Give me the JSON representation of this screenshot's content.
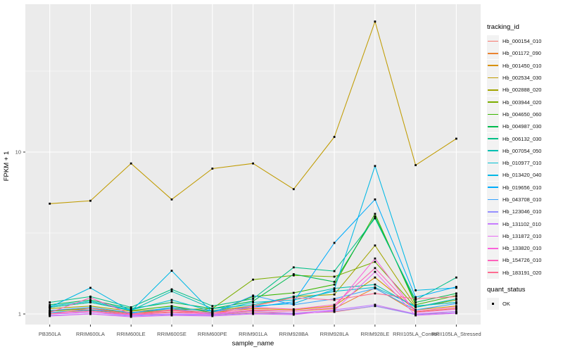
{
  "chart_data": {
    "type": "line",
    "title": "",
    "xlabel": "sample_name",
    "ylabel": "FPKM + 1",
    "x_categories": [
      "PB350LA",
      "RRIM600LA",
      "RRIM600LE",
      "RRIM600SE",
      "RRIM600PE",
      "RRIM901LA",
      "RRIM928BA",
      "RRIM928LA",
      "RRIM928LE",
      "RRII105LA_Control",
      "RRII105LA_Stressed"
    ],
    "y_axis": {
      "scale": "log10",
      "major_ticks": [
        1,
        10
      ],
      "major_tick_labels": [
        "1",
        "10"
      ],
      "minor_ticks": [
        3.1623,
        31.623
      ],
      "approx_range": [
        0.86,
        82
      ],
      "grid": true
    },
    "marker": {
      "shape": "square",
      "color": "#000000",
      "legend_label": "OK"
    },
    "series": [
      {
        "name": "Hb_000154_010",
        "color": "#F8766D",
        "values": [
          1.0,
          1.02,
          0.99,
          1.0,
          0.99,
          1.02,
          1.01,
          1.03,
          1.12,
          1.0,
          1.02
        ]
      },
      {
        "name": "Hb_001172_090",
        "color": "#EA8331",
        "values": [
          1.02,
          1.05,
          1.0,
          1.03,
          1.0,
          1.05,
          1.04,
          1.08,
          1.45,
          1.03,
          1.08
        ]
      },
      {
        "name": "Hb_001450_010",
        "color": "#D89000",
        "values": [
          1.05,
          1.08,
          1.02,
          1.05,
          1.02,
          1.08,
          1.06,
          1.12,
          1.68,
          1.06,
          1.12
        ]
      },
      {
        "name": "Hb_002534_030",
        "color": "#C09B00",
        "values": [
          4.8,
          5.0,
          8.5,
          5.1,
          7.9,
          8.5,
          5.9,
          12.4,
          64.0,
          8.3,
          12.1
        ]
      },
      {
        "name": "Hb_002888_020",
        "color": "#A3A500",
        "values": [
          1.08,
          1.12,
          1.04,
          1.08,
          1.05,
          1.12,
          1.28,
          1.32,
          2.65,
          1.12,
          1.18
        ]
      },
      {
        "name": "Hb_003944_020",
        "color": "#7CAE00",
        "values": [
          1.04,
          1.08,
          1.02,
          1.06,
          1.08,
          1.63,
          1.73,
          1.7,
          2.1,
          1.1,
          1.22
        ]
      },
      {
        "name": "Hb_004650_060",
        "color": "#39B600",
        "values": [
          1.1,
          1.18,
          1.05,
          1.12,
          1.02,
          1.28,
          1.35,
          1.52,
          4.15,
          1.14,
          1.3
        ]
      },
      {
        "name": "Hb_004987_030",
        "color": "#00BB4E",
        "values": [
          1.14,
          1.22,
          1.08,
          1.18,
          1.08,
          1.2,
          1.76,
          1.58,
          4.0,
          1.18,
          1.34
        ]
      },
      {
        "name": "Hb_006132_030",
        "color": "#00C087",
        "values": [
          1.18,
          1.28,
          1.1,
          1.42,
          1.12,
          1.24,
          1.94,
          1.84,
          3.9,
          1.22,
          1.68
        ]
      },
      {
        "name": "Hb_007054_050",
        "color": "#00C0B2",
        "values": [
          1.1,
          1.18,
          1.05,
          1.38,
          1.08,
          1.14,
          1.28,
          1.44,
          1.52,
          1.1,
          1.24
        ]
      },
      {
        "name": "Hb_010977_010",
        "color": "#00BFD3",
        "values": [
          1.12,
          1.2,
          1.06,
          1.22,
          1.04,
          1.18,
          1.22,
          1.38,
          1.46,
          1.12,
          1.18
        ]
      },
      {
        "name": "Hb_013420_040",
        "color": "#00B8E5",
        "values": [
          1.1,
          1.45,
          1.04,
          1.85,
          1.02,
          1.12,
          1.16,
          1.42,
          8.2,
          1.4,
          1.45
        ]
      },
      {
        "name": "Hb_019656_010",
        "color": "#00ACFC",
        "values": [
          1.02,
          1.06,
          1.01,
          1.1,
          1.04,
          1.1,
          1.19,
          2.75,
          5.1,
          1.27,
          1.47
        ]
      },
      {
        "name": "Hb_043708_010",
        "color": "#35A2FF",
        "values": [
          1.05,
          1.1,
          1.02,
          1.08,
          1.01,
          1.3,
          1.14,
          1.24,
          1.44,
          1.06,
          1.16
        ]
      },
      {
        "name": "Hb_123046_010",
        "color": "#9590FF",
        "values": [
          0.98,
          1.0,
          0.97,
          0.99,
          0.98,
          1.01,
          1.0,
          1.04,
          1.12,
          0.99,
          1.02
        ]
      },
      {
        "name": "Hb_131102_010",
        "color": "#C77CFF",
        "values": [
          1.0,
          1.02,
          0.98,
          1.0,
          0.99,
          1.04,
          1.01,
          1.06,
          1.14,
          1.0,
          1.04
        ]
      },
      {
        "name": "Hb_131872_010",
        "color": "#E76BF3",
        "values": [
          0.97,
          1.0,
          0.96,
          0.98,
          0.97,
          1.0,
          0.99,
          1.05,
          1.82,
          0.98,
          1.01
        ]
      },
      {
        "name": "Hb_133820_010",
        "color": "#FA62DB",
        "values": [
          1.0,
          1.04,
          0.99,
          1.02,
          1.0,
          1.06,
          1.04,
          1.1,
          2.2,
          1.02,
          1.07
        ]
      },
      {
        "name": "Hb_154726_010",
        "color": "#FF62BC",
        "values": [
          1.02,
          1.26,
          1.0,
          1.05,
          1.0,
          1.1,
          1.07,
          1.14,
          1.92,
          1.04,
          1.1
        ]
      },
      {
        "name": "Hb_183191_020",
        "color": "#FF6C91",
        "values": [
          1.0,
          1.08,
          1.0,
          1.06,
          1.02,
          1.12,
          1.26,
          1.22,
          1.34,
          1.24,
          1.28
        ]
      }
    ],
    "legend_position": "right"
  },
  "legend": {
    "tracking_title": "tracking_id",
    "quant_title": "quant_status",
    "quant_items": [
      {
        "label": "OK"
      }
    ]
  },
  "colors": {
    "panel_bg": "#EBEBEB",
    "grid": "#FFFFFF",
    "axis_text": "#4D4D4D",
    "axis_title": "#000000",
    "tick_mark": "#333333",
    "key_bg": "#F2F2F2",
    "marker": "#000000"
  }
}
